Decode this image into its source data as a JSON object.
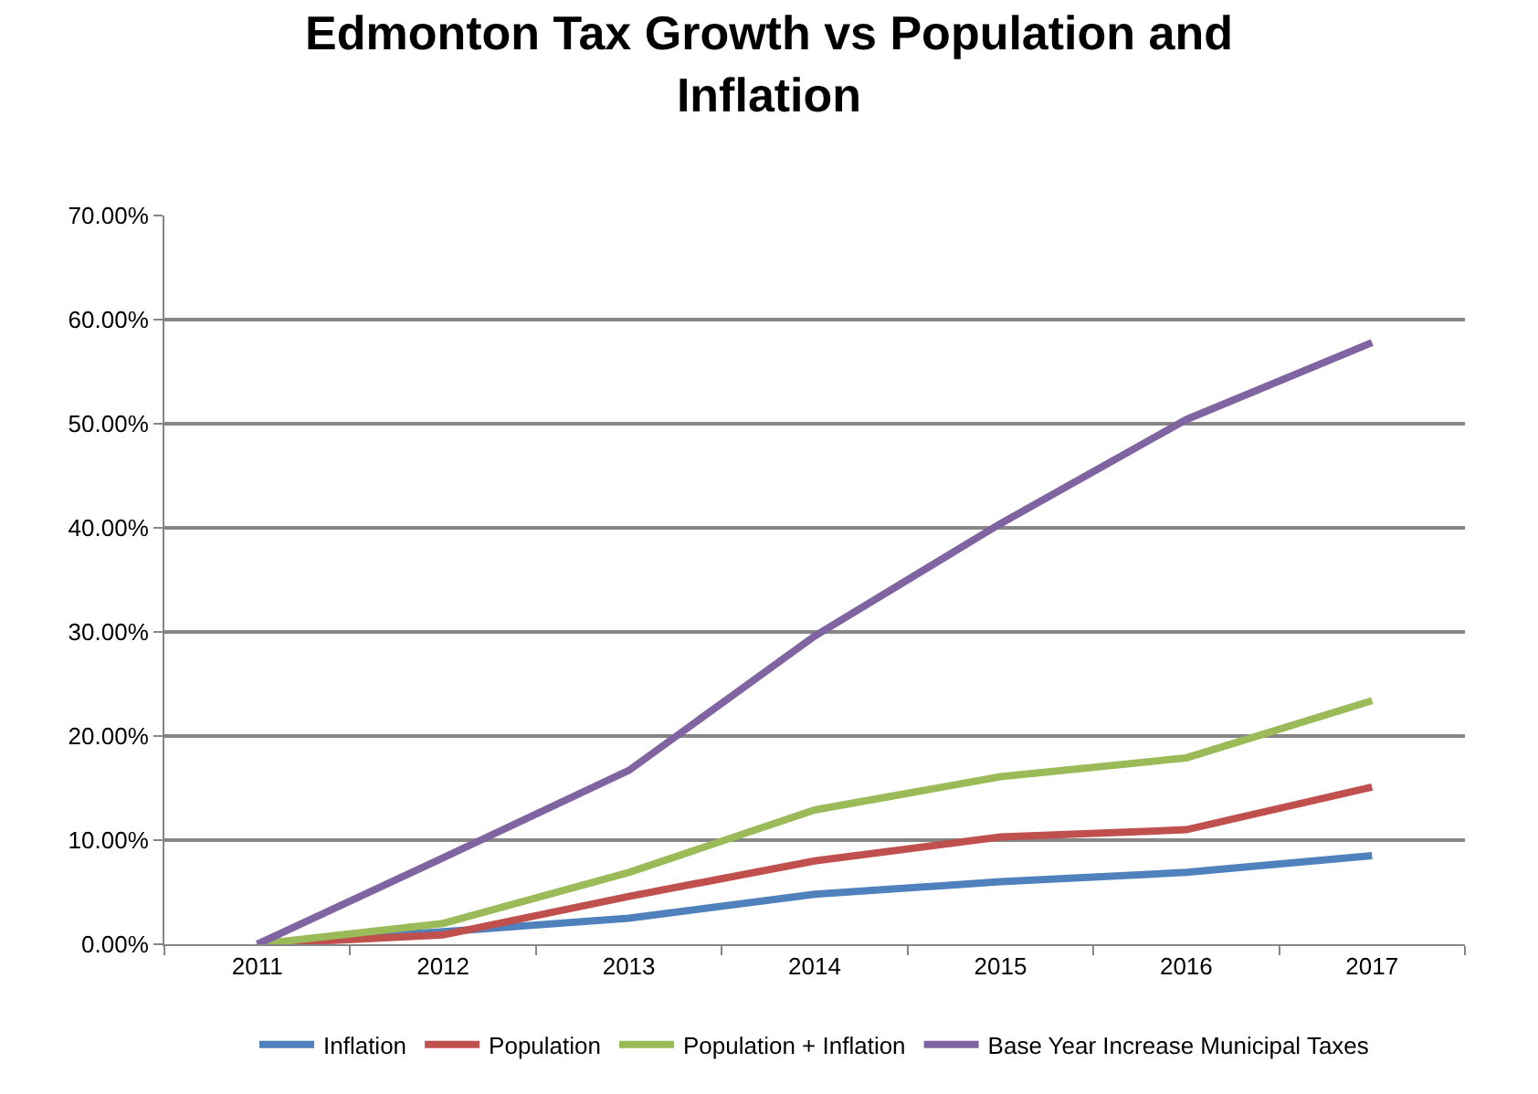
{
  "chart_data": {
    "type": "line",
    "title": "Edmonton Tax Growth vs Population and Inflation",
    "categories": [
      "2011",
      "2012",
      "2013",
      "2014",
      "2015",
      "2016",
      "2017"
    ],
    "series": [
      {
        "name": "Inflation",
        "color": "#4f81bd",
        "values": [
          0,
          1.2,
          2.5,
          4.8,
          6.0,
          6.9,
          8.5
        ]
      },
      {
        "name": "Population",
        "color": "#c0504d",
        "values": [
          0,
          0.9,
          4.6,
          8.0,
          10.3,
          11.0,
          15.1
        ]
      },
      {
        "name": "Population + Inflation",
        "color": "#9bbb59",
        "values": [
          0,
          2.0,
          6.9,
          12.9,
          16.1,
          17.9,
          23.4
        ]
      },
      {
        "name": "Base Year Increase Municipal Taxes",
        "color": "#8064a2",
        "values": [
          0,
          8.3,
          16.7,
          29.6,
          40.4,
          50.4,
          57.8
        ]
      }
    ],
    "ylim": [
      0,
      70
    ],
    "yticks": [
      {
        "value": 0,
        "label": "0.00%"
      },
      {
        "value": 10,
        "label": "10.00%"
      },
      {
        "value": 20,
        "label": "20.00%"
      },
      {
        "value": 30,
        "label": "30.00%"
      },
      {
        "value": 40,
        "label": "40.00%"
      },
      {
        "value": 50,
        "label": "50.00%"
      },
      {
        "value": 60,
        "label": "60.00%"
      },
      {
        "value": 70,
        "label": "70.00%"
      }
    ],
    "grid": "y",
    "legend": "bottom",
    "marker": "none",
    "line_style": "solid"
  }
}
